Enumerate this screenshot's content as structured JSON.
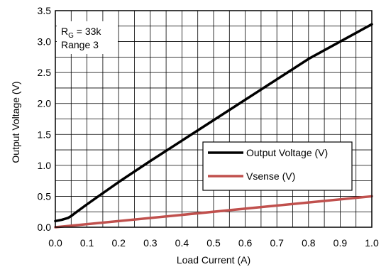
{
  "chart_data": {
    "type": "line",
    "title": "",
    "xlabel": "Load Current (A)",
    "ylabel": "Output Voltage (V)",
    "xlim": [
      0,
      1.0
    ],
    "ylim": [
      0,
      3.5
    ],
    "x_ticks": [
      "0.0",
      "0.1",
      "0.2",
      "0.3",
      "0.4",
      "0.5",
      "0.6",
      "0.7",
      "0.8",
      "0.9",
      "1.0"
    ],
    "y_ticks": [
      "0.0",
      "0.5",
      "1.0",
      "1.5",
      "2.0",
      "2.5",
      "3.0",
      "3.5"
    ],
    "grid": true,
    "legend_position": "center-right",
    "annotation": {
      "line1_main": "R",
      "line1_sub": "G",
      "line1_rest": " = 33k",
      "line2": "Range 3"
    },
    "series": [
      {
        "name": "Output Voltage (V)",
        "color": "#000000",
        "x": [
          0.0,
          0.02,
          0.04,
          0.05,
          0.06,
          0.1,
          0.2,
          0.3,
          0.4,
          0.5,
          0.6,
          0.7,
          0.8,
          0.9,
          1.0
        ],
        "y": [
          0.1,
          0.12,
          0.15,
          0.18,
          0.22,
          0.37,
          0.73,
          1.07,
          1.4,
          1.73,
          2.06,
          2.39,
          2.72,
          3.0,
          3.28
        ]
      },
      {
        "name": "Vsense (V)",
        "color": "#c0504d",
        "x": [
          0.0,
          1.0
        ],
        "y": [
          0.0,
          0.5
        ]
      }
    ]
  }
}
